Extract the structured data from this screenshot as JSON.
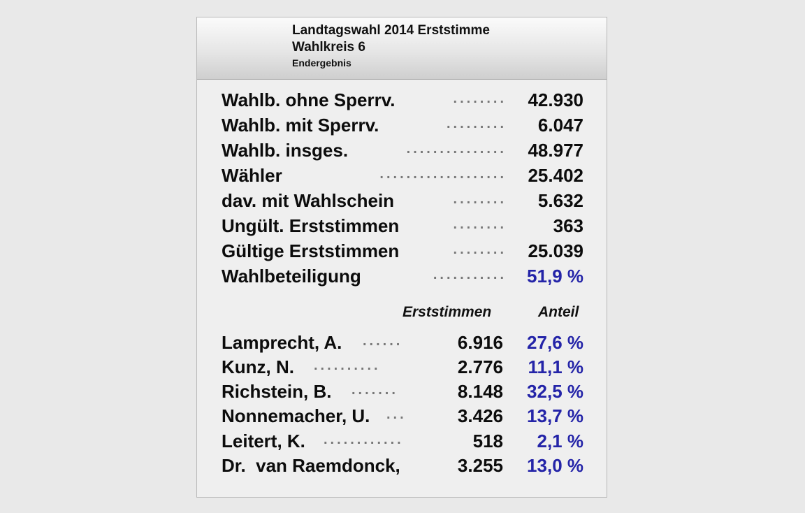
{
  "header": {
    "line1": "Landtagswahl 2014 Erststimme",
    "line2": "Wahlkreis 6",
    "line3": "Endergebnis"
  },
  "summary": [
    {
      "label": "Wahlb. ohne Sperrv.",
      "value": "42.930",
      "dots": "........"
    },
    {
      "label": "Wahlb. mit Sperrv.",
      "value": "6.047",
      "dots": "........."
    },
    {
      "label": "Wahlb. insges.",
      "value": "48.977",
      "dots": "..............."
    },
    {
      "label": "Wähler",
      "value": "25.402",
      "dots": "..................."
    },
    {
      "label": "dav. mit Wahlschein",
      "value": "5.632",
      "dots": "........"
    },
    {
      "label": "Ungült. Erststimmen",
      "value": "363",
      "dots": "........"
    },
    {
      "label": "Gültige Erststimmen",
      "value": "25.039",
      "dots": "........"
    },
    {
      "label": "Wahlbeteiligung",
      "value": "51,9 %",
      "dots": "..........."
    }
  ],
  "columns": {
    "votes": "Erststimmen",
    "share": "Anteil"
  },
  "candidates": [
    {
      "name": "Lamprecht, A.",
      "dots": "......",
      "votes": "6.916",
      "share": "27,6 %"
    },
    {
      "name": "Kunz, N.",
      "dots": "..........",
      "votes": "2.776",
      "share": "11,1 %"
    },
    {
      "name": "Richstein, B.",
      "dots": ".......",
      "votes": "8.148",
      "share": "32,5 %"
    },
    {
      "name": "Nonnemacher, U.",
      "dots": "...",
      "votes": "3.426",
      "share": "13,7 %"
    },
    {
      "name": "Leitert, K.",
      "dots": "............",
      "votes": "518",
      "share": "2,1 %"
    },
    {
      "name": "Dr.  van Raemdonck,",
      "dots": "",
      "votes": "3.255",
      "share": "13,0 %"
    }
  ],
  "colors": {
    "accent_blue": "#2424a8",
    "text": "#0c0c0c",
    "background": "#e9e9e9",
    "panel": "#efefef"
  }
}
